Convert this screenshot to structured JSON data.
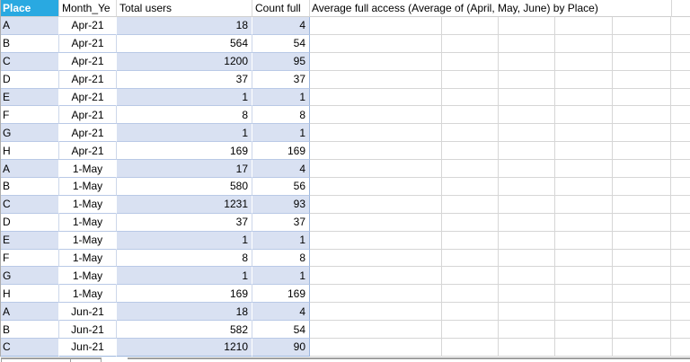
{
  "header": {
    "place": "Place",
    "month": "Month_Ye",
    "total_users": "Total users",
    "count_full": "Count full",
    "average": "Average full access (Average of (April, May, June) by Place)"
  },
  "table": {
    "rows": [
      {
        "place": "A",
        "month": "Apr-21",
        "total_users": "18",
        "count_full": "4"
      },
      {
        "place": "B",
        "month": "Apr-21",
        "total_users": "564",
        "count_full": "54"
      },
      {
        "place": "C",
        "month": "Apr-21",
        "total_users": "1200",
        "count_full": "95"
      },
      {
        "place": "D",
        "month": "Apr-21",
        "total_users": "37",
        "count_full": "37"
      },
      {
        "place": "E",
        "month": "Apr-21",
        "total_users": "1",
        "count_full": "1"
      },
      {
        "place": "F",
        "month": "Apr-21",
        "total_users": "8",
        "count_full": "8"
      },
      {
        "place": "G",
        "month": "Apr-21",
        "total_users": "1",
        "count_full": "1"
      },
      {
        "place": "H",
        "month": "Apr-21",
        "total_users": "169",
        "count_full": "169"
      },
      {
        "place": "A",
        "month": "1-May",
        "total_users": "17",
        "count_full": "4"
      },
      {
        "place": "B",
        "month": "1-May",
        "total_users": "580",
        "count_full": "56"
      },
      {
        "place": "C",
        "month": "1-May",
        "total_users": "1231",
        "count_full": "93"
      },
      {
        "place": "D",
        "month": "1-May",
        "total_users": "37",
        "count_full": "37"
      },
      {
        "place": "E",
        "month": "1-May",
        "total_users": "1",
        "count_full": "1"
      },
      {
        "place": "F",
        "month": "1-May",
        "total_users": "8",
        "count_full": "8"
      },
      {
        "place": "G",
        "month": "1-May",
        "total_users": "1",
        "count_full": "1"
      },
      {
        "place": "H",
        "month": "1-May",
        "total_users": "169",
        "count_full": "169"
      },
      {
        "place": "A",
        "month": "Jun-21",
        "total_users": "18",
        "count_full": "4"
      },
      {
        "place": "B",
        "month": "Jun-21",
        "total_users": "582",
        "count_full": "54"
      },
      {
        "place": "C",
        "month": "Jun-21",
        "total_users": "1210",
        "count_full": "90"
      }
    ]
  },
  "colors": {
    "header_fill": "#29A9E1",
    "header_text": "#FFFFFF",
    "band_fill": "#D9E1F2",
    "row_border": "#B9C9E6",
    "table_edge": "#9DB7DE",
    "gridline": "#D6D6D6",
    "peek_border": "#9F9F9F"
  }
}
